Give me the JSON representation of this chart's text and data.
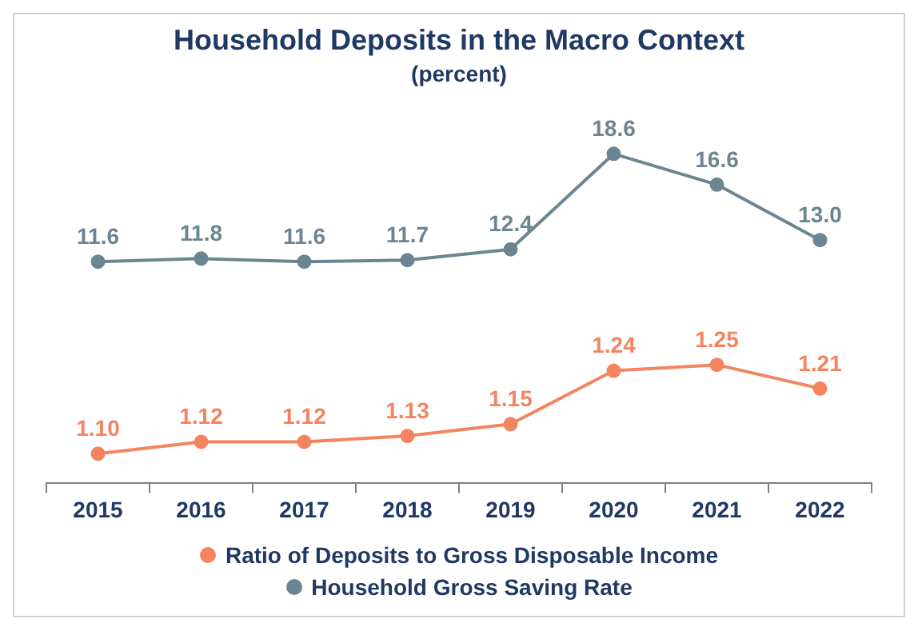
{
  "chart_data": [
    {
      "type": "line",
      "title": "Household Deposits in the Macro Context",
      "subtitle": "(percent)",
      "categories": [
        "2015",
        "2016",
        "2017",
        "2018",
        "2019",
        "2020",
        "2021",
        "2022"
      ],
      "tick_labels": false,
      "marker": "circle",
      "line_style": "solid",
      "series": [
        {
          "name": "Household Gross Saving Rate",
          "color": "#6b8591",
          "values": [
            11.6,
            11.8,
            11.6,
            11.7,
            12.4,
            18.6,
            16.6,
            13.0
          ],
          "value_labels": [
            "11.6",
            "11.8",
            "11.6",
            "11.7",
            "12.4",
            "18.6",
            "16.6",
            "13.0"
          ]
        }
      ]
    },
    {
      "type": "line",
      "categories": [
        "2015",
        "2016",
        "2017",
        "2018",
        "2019",
        "2020",
        "2021",
        "2022"
      ],
      "tick_labels": "x",
      "legend": "bottom",
      "marker": "circle",
      "line_style": "solid",
      "series": [
        {
          "name": "Ratio of Deposits to Gross Disposable Income",
          "color": "#f4845f",
          "values": [
            1.1,
            1.12,
            1.12,
            1.13,
            1.15,
            1.24,
            1.25,
            1.21
          ],
          "value_labels": [
            "1.10",
            "1.12",
            "1.12",
            "1.13",
            "1.15",
            "1.24",
            "1.25",
            "1.21"
          ]
        }
      ]
    }
  ]
}
